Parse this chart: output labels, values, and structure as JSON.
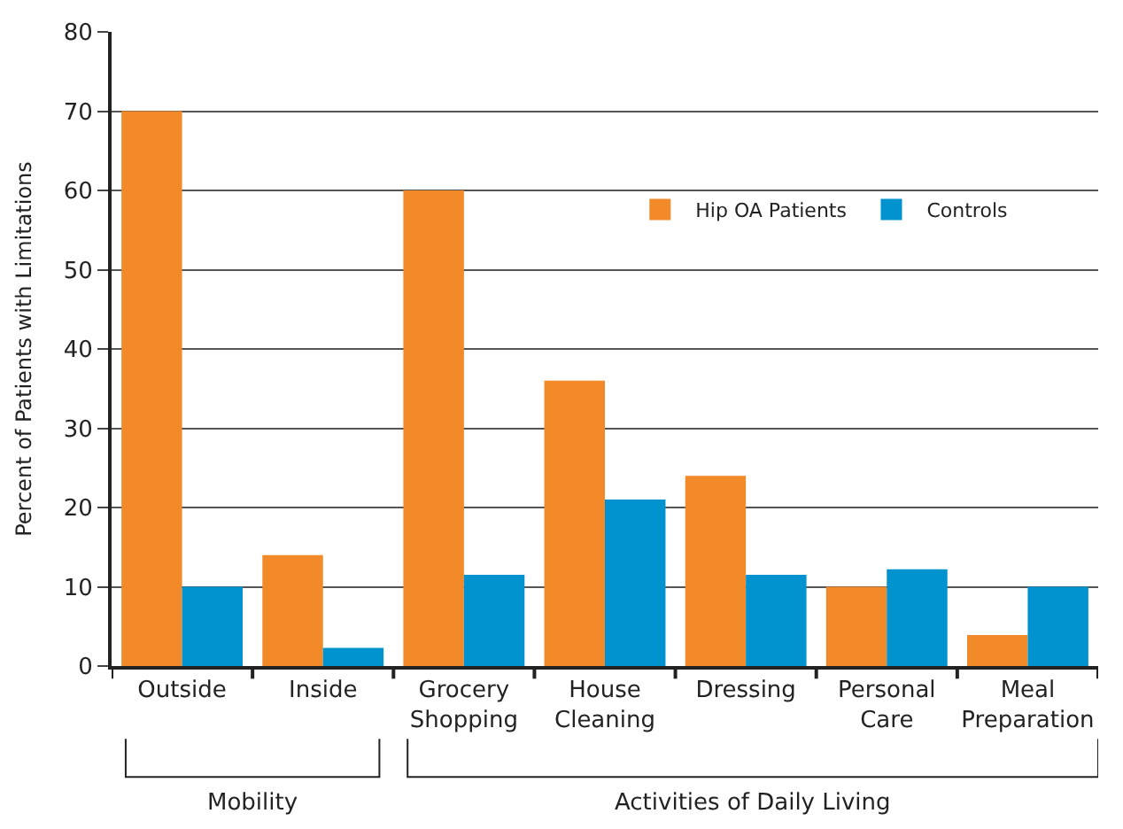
{
  "chart_data": {
    "type": "bar",
    "ylabel": "Percent of Patients with Limitations",
    "categories": [
      "Outside",
      "Inside",
      "Grocery\nShopping",
      "House\nCleaning",
      "Dressing",
      "Personal\nCare",
      "Meal\nPreparation"
    ],
    "series": [
      {
        "name": "Hip OA Patients",
        "color": "#f28a2a",
        "values": [
          70,
          14,
          60,
          36,
          24,
          10,
          3.9
        ]
      },
      {
        "name": "Controls",
        "color": "#0093cf",
        "values": [
          10,
          2.3,
          11.5,
          21,
          11.5,
          12.2,
          10
        ]
      }
    ],
    "ylim": [
      0,
      80
    ],
    "yticks": [
      0,
      10,
      20,
      30,
      40,
      50,
      60,
      70,
      80
    ],
    "grid": "y",
    "legend": "top right",
    "annotations": [
      "Mobility",
      "Activities of Daily Living"
    ]
  }
}
